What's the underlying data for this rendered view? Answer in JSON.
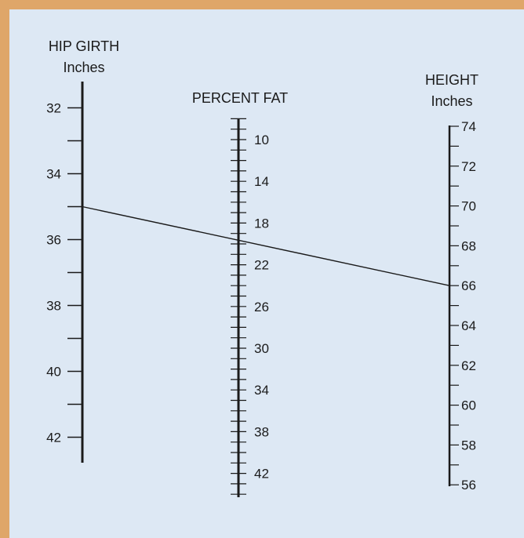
{
  "colors": {
    "border": "#dfa669",
    "background": "#dde8f4",
    "ink": "#1a1a1a"
  },
  "scales": {
    "hip_girth": {
      "title_line1": "HIP GIRTH",
      "title_line2": "Inches",
      "labels": [
        "32",
        "34",
        "36",
        "38",
        "40",
        "42"
      ]
    },
    "percent_fat": {
      "title_line1": "PERCENT FAT",
      "labels": [
        "10",
        "14",
        "18",
        "22",
        "26",
        "30",
        "34",
        "38",
        "42"
      ]
    },
    "height": {
      "title_line1": "HEIGHT",
      "title_line2": "Inches",
      "labels": [
        "74",
        "72",
        "70",
        "68",
        "66",
        "64",
        "62",
        "60",
        "58",
        "56"
      ]
    }
  },
  "example_line": {
    "hip_girth": 35,
    "percent_fat": 20,
    "height": 66
  }
}
